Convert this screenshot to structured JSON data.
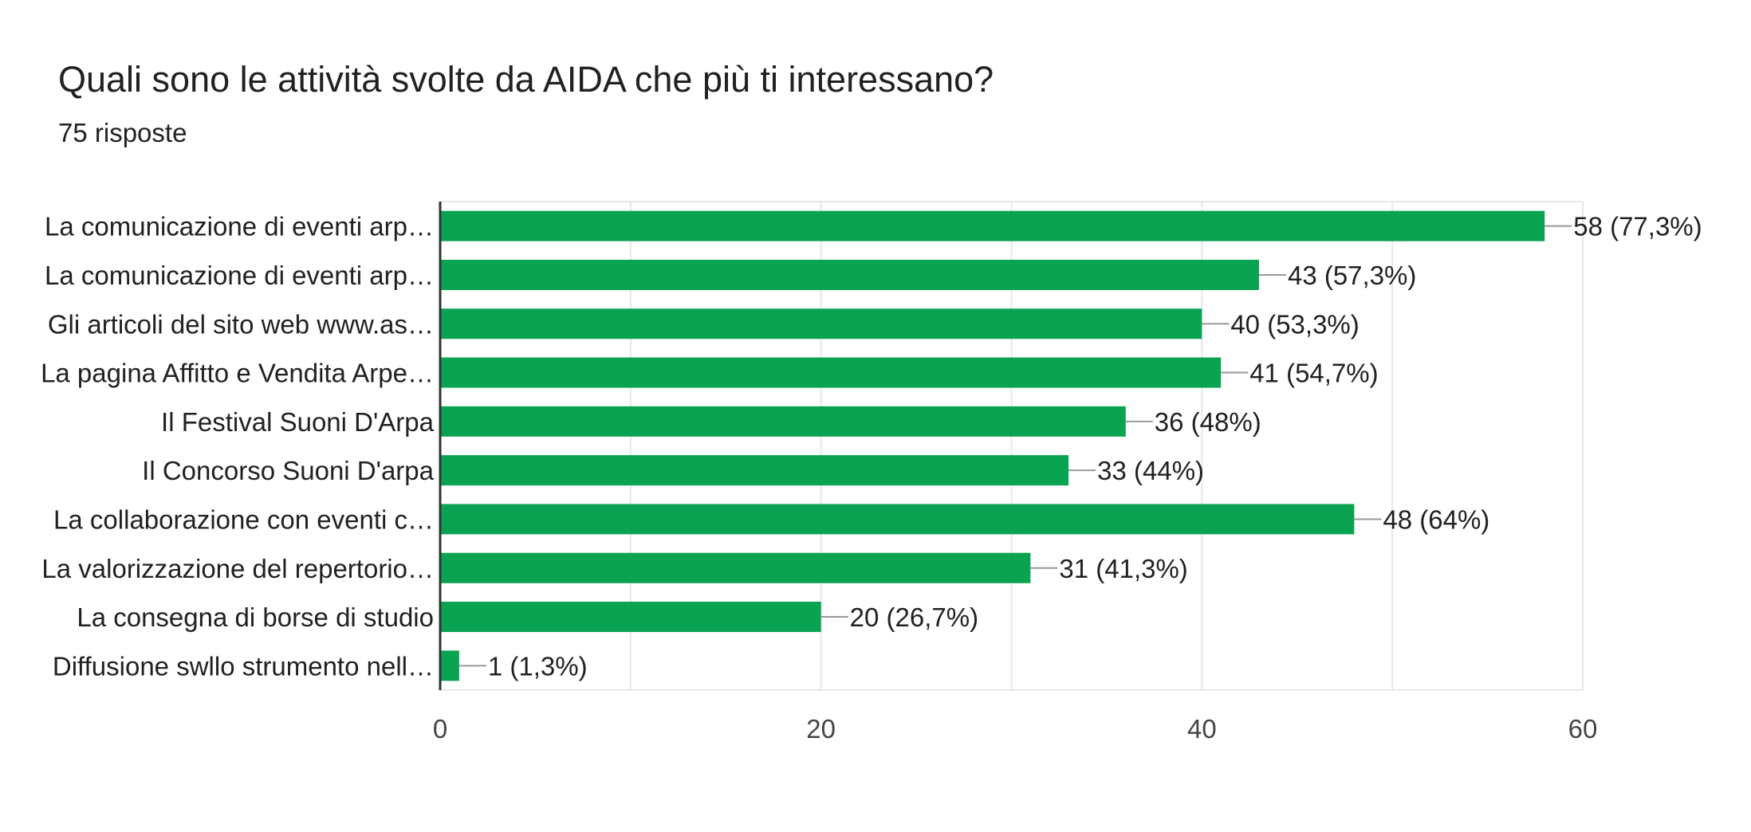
{
  "title": "Quali sono le attività svolte da AIDA che più ti interessano?",
  "subtitle": "75 risposte",
  "colors": {
    "bar": "#0aa351",
    "grid": "#e8e8e8",
    "axis": "#333333",
    "leader": "#999999",
    "text": "#202124",
    "tick_text": "#444444"
  },
  "chart_data": {
    "type": "bar",
    "orientation": "horizontal",
    "categories": [
      "La comunicazione di eventi arp…",
      "La comunicazione di eventi arp…",
      "Gli articoli del sito web www.as…",
      "La pagina Affitto e Vendita Arpe…",
      "Il Festival Suoni D'Arpa",
      "Il Concorso Suoni D'arpa",
      "La collaborazione con eventi c…",
      "La valorizzazione del repertorio…",
      "La consegna di borse di studio",
      "Diffusione swllo strumento nell…"
    ],
    "values": [
      58,
      43,
      40,
      41,
      36,
      33,
      48,
      31,
      20,
      1
    ],
    "value_labels": [
      "58 (77,3%)",
      "43 (57,3%)",
      "40 (53,3%)",
      "41 (54,7%)",
      "36 (48%)",
      "33 (44%)",
      "48 (64%)",
      "31 (41,3%)",
      "20 (26,7%)",
      "1 (1,3%)"
    ],
    "xlim": [
      0,
      60
    ],
    "xticks": [
      0,
      20,
      40,
      60
    ],
    "xtick_labels": [
      "0",
      "20",
      "40",
      "60"
    ],
    "minor_grid_step": 10,
    "grid": true,
    "legend": "none"
  }
}
